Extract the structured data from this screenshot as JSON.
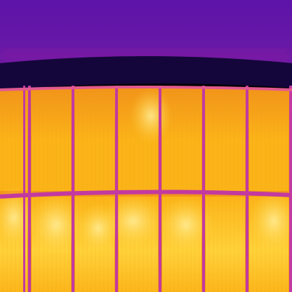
{
  "image": {
    "kind": "thermal-photograph",
    "subject": "solar-panel-array",
    "palette": {
      "sky_top": "#5d14a8",
      "sky_bottom": "#6c1aa6",
      "sky_edge": "#8a1ca0",
      "eave": "#14063a",
      "frame_line": "#c23aa0",
      "frame_line_hot": "#e25a90",
      "cell_cool": "#f2961a",
      "cell_mid": "#fbb418",
      "cell_warm": "#ffd23a",
      "cell_hot": "#fff0a0"
    },
    "columns": 7,
    "rows": 2
  }
}
